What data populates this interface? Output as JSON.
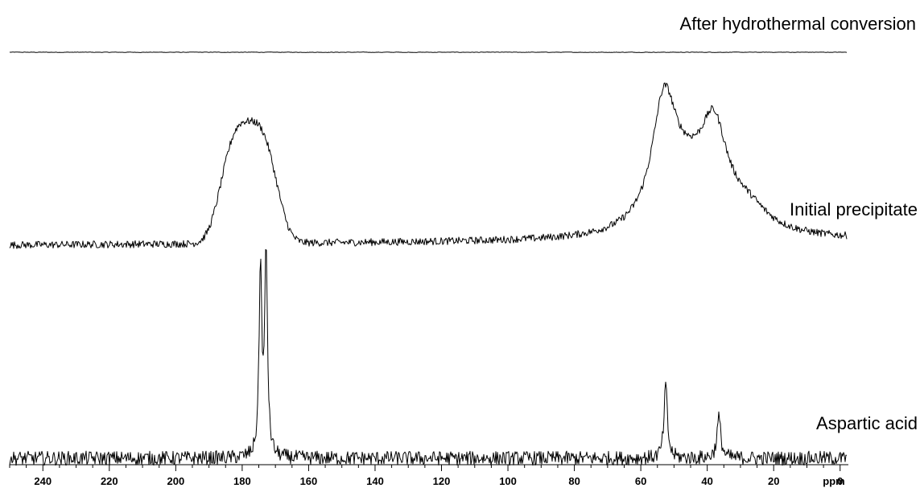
{
  "chart_data": {
    "type": "line",
    "title": "",
    "xlabel": "ppm",
    "ylabel": "",
    "x_direction": "reversed",
    "xlim": [
      250,
      -2
    ],
    "x_ticks": [
      240,
      220,
      200,
      180,
      160,
      140,
      120,
      100,
      80,
      60,
      40,
      20,
      0
    ],
    "grid": false,
    "legend": "none",
    "series": [
      {
        "name": "After hydrothermal conversion",
        "noise": 0.07,
        "baseline": 0,
        "peaks": []
      },
      {
        "name": "Initial precipitate",
        "noise": 0.03,
        "baseline_start": 0,
        "baseline_end": 0.04,
        "peaks": [
          {
            "center": 178,
            "height": 1.0,
            "width": 7.5,
            "shape": "flat-top"
          },
          {
            "center": 53,
            "height": 0.98,
            "width": 4.5
          },
          {
            "center": 38,
            "height": 0.75,
            "width": 5
          },
          {
            "center": 46,
            "height": 0.35,
            "width": 8
          },
          {
            "center": 28,
            "height": 0.18,
            "width": 8
          }
        ]
      },
      {
        "name": "Aspartic acid",
        "noise": 0.035,
        "baseline": 0,
        "peaks": [
          {
            "center": 174.5,
            "height": 0.92,
            "width": 0.5
          },
          {
            "center": 172.8,
            "height": 1.0,
            "width": 0.5
          },
          {
            "center": 52.5,
            "height": 0.36,
            "width": 0.6
          },
          {
            "center": 36.5,
            "height": 0.2,
            "width": 0.7
          }
        ]
      }
    ]
  }
}
